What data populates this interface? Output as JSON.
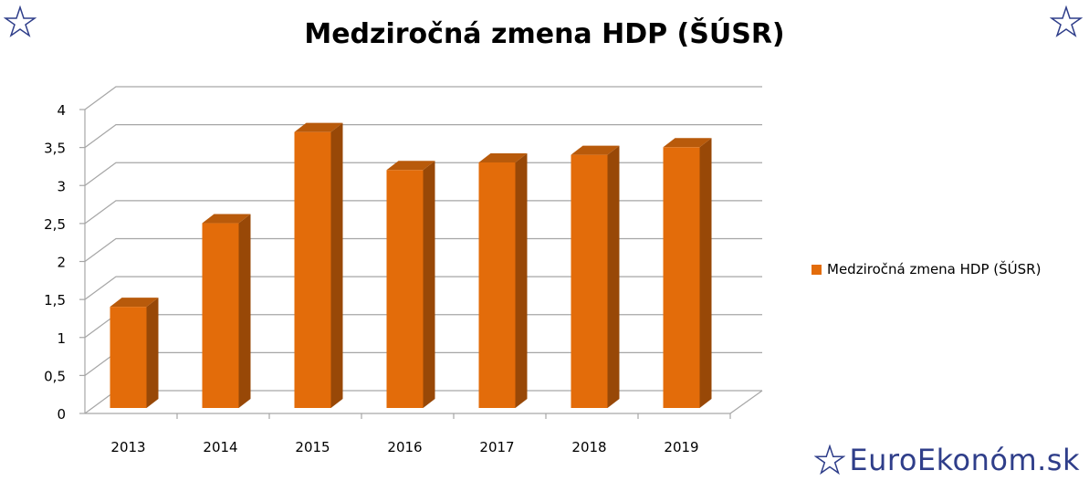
{
  "colors": {
    "bar_front": "#e36c0a",
    "bar_side": "#984807",
    "bar_top": "#b85a0b",
    "grid": "#a6a6a6",
    "brand": "#2f3e8a"
  },
  "icons": {
    "corner_left": "star-outline-icon",
    "corner_right": "star-outline-icon",
    "brand": "star-outline-icon"
  },
  "brand": {
    "text": "EuroEkonóm.sk"
  },
  "chart_data": {
    "type": "bar",
    "title": "Medziročná zmena HDP (ŠÚSR)",
    "categories": [
      "2013",
      "2014",
      "2015",
      "2016",
      "2017",
      "2018",
      "2019"
    ],
    "series": [
      {
        "name": "Medziročná zmena HDP (ŠÚSR)",
        "values": [
          1.5,
          2.6,
          3.8,
          3.3,
          3.4,
          3.5,
          3.6
        ]
      }
    ],
    "yticks": [
      "0",
      "0,5",
      "1",
      "1,5",
      "2",
      "2,5",
      "3",
      "3,5",
      "4"
    ],
    "ylim": [
      0,
      4
    ],
    "grid": true,
    "legend": "right",
    "xlabel": "",
    "ylabel": ""
  }
}
